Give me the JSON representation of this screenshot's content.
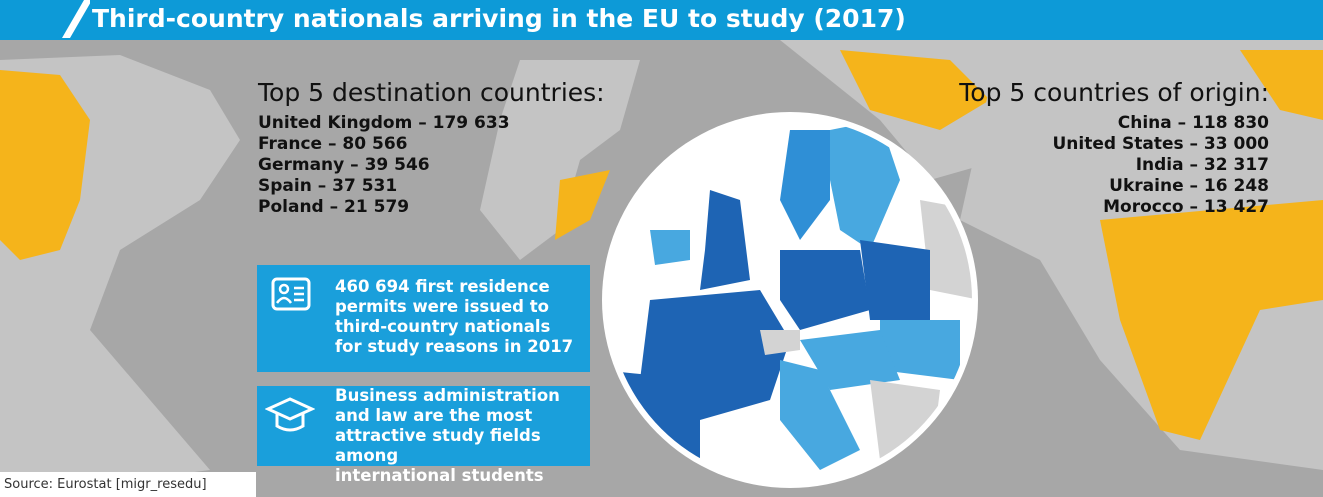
{
  "header": {
    "title": "Third-country nationals arriving in the EU to study (2017)"
  },
  "destinations": {
    "heading": "Top 5 destination countries:",
    "items": [
      "United Kingdom – 179 633",
      "France – 80 566",
      "Germany – 39 546",
      "Spain – 37 531",
      "Poland – 21 579"
    ]
  },
  "origins": {
    "heading": "Top 5 countries of origin:",
    "items": [
      "China – 118 830",
      "United States – 33 000",
      "India – 32 317",
      "Ukraine – 16 248",
      "Morocco – 13 427"
    ]
  },
  "permits_box": {
    "lines": [
      "460 694 first residence",
      "permits were issued to",
      "third-country nationals",
      "for study reasons in 2017"
    ]
  },
  "fields_box": {
    "lines": [
      "Business administration",
      "and law are the most",
      "attractive study fields among",
      "international students"
    ]
  },
  "source": "Source: Eurostat [migr_resedu]"
}
